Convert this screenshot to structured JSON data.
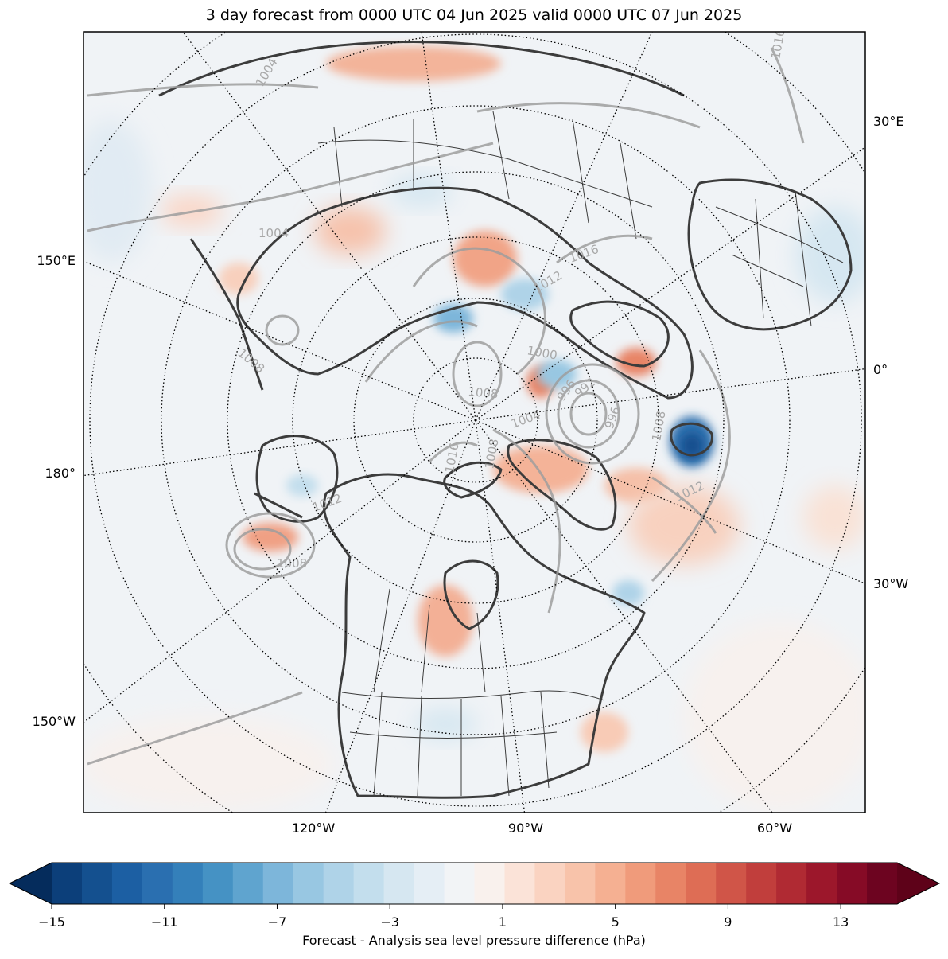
{
  "title": "3 day forecast from 0000 UTC 04 Jun 2025 valid 0000 UTC 07 Jun 2025",
  "longitude_labels": {
    "right": [
      "30°E",
      "0°",
      "30°W"
    ],
    "left": [
      "150°E",
      "180°",
      "150°W"
    ],
    "bottom": [
      "120°W",
      "90°W",
      "60°W"
    ]
  },
  "isobar_labels": [
    "1004",
    "1004",
    "1008",
    "1012",
    "1016",
    "1000",
    "1008",
    "996",
    "992",
    "996",
    "1004",
    "1008",
    "1016",
    "1012",
    "1008",
    "1008",
    "1012",
    "1016"
  ],
  "colorbar": {
    "label": "Forecast - Analysis sea level pressure difference (hPa)",
    "ticks": [
      "−15",
      "−11",
      "−7",
      "−3",
      "1",
      "5",
      "9",
      "13"
    ],
    "min": -15,
    "max": 15,
    "step": 1,
    "colors": [
      "#0c3f7a",
      "#14508f",
      "#1c5fa3",
      "#2a6fb0",
      "#3480ba",
      "#4592c4",
      "#5fa4cf",
      "#7db6da",
      "#98c7e2",
      "#afd3e8",
      "#c3deed",
      "#d6e7f1",
      "#e5eef5",
      "#f2f4f6",
      "#f9f1ed",
      "#fbe3d8",
      "#fad3c1",
      "#f8c3aa",
      "#f5b092",
      "#f09b7b",
      "#e88466",
      "#de6d55",
      "#d05548",
      "#c13e3c",
      "#b02a33",
      "#9c172b",
      "#860b26",
      "#6d0420"
    ],
    "under_color": "#052c5c",
    "over_color": "#5e0219"
  }
}
